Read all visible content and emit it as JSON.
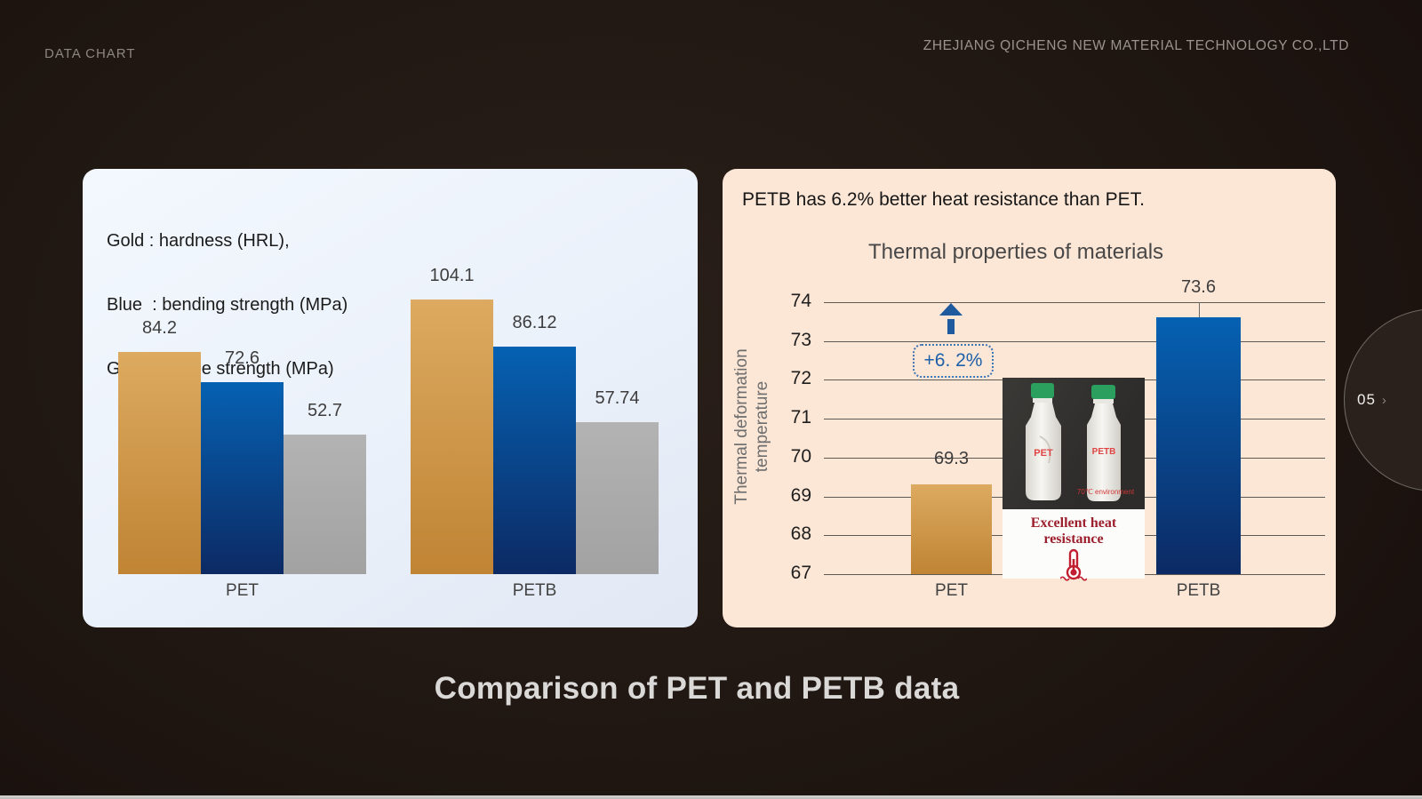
{
  "header": {
    "left_label": "DATA CHART",
    "company": "ZHEJIANG QICHENG NEW MATERIAL TECHNOLOGY  CO.,LTD"
  },
  "footer": {
    "title": "Comparison of PET and PETB data"
  },
  "pager": {
    "page": "05",
    "chevron": "›"
  },
  "left_panel": {
    "legend_lines": [
      "Gold : hardness (HRL),",
      "Blue  : bending strength (MPa)",
      "Gray : tensile strength (MPa)"
    ]
  },
  "right_panel": {
    "headline": "PETB has 6.2% better heat resistance than PET.",
    "chart_title": "Thermal properties of materials",
    "ylabel_line1": "Thermal deformation",
    "ylabel_line2": "temperature",
    "annotation": "+6. 2%",
    "photo": {
      "bottle_left_label": "PET",
      "bottle_right_label": "PETB",
      "note": "70℃ environment",
      "caption": "Excellent heat resistance"
    }
  },
  "colors": {
    "gold_top": "#dcaa60",
    "gold_bottom": "#c08434",
    "blue_top": "#0661b2",
    "blue_bottom": "#0c2a64",
    "gray_top": "#b3b3b3",
    "gray_bottom": "#a2a2a2",
    "annotation_blue": "#1d5fa8",
    "arrow_blue": "#1e5a9d",
    "caption_red": "#9c1f2d",
    "gridline": "#5d5a56"
  },
  "chart_data": [
    {
      "type": "bar",
      "panel": "left",
      "title": "",
      "categories": [
        "PET",
        "PETB"
      ],
      "series": [
        {
          "name": "hardness (HRL)",
          "color": "gold",
          "values": [
            84.2,
            104.1
          ]
        },
        {
          "name": "bending strength (MPa)",
          "color": "blue",
          "values": [
            72.6,
            86.12
          ]
        },
        {
          "name": "tensile strength (MPa)",
          "color": "gray",
          "values": [
            52.7,
            57.74
          ]
        }
      ],
      "ylim": [
        0,
        110
      ],
      "grid": false,
      "value_labels": true,
      "legend_note": "Gold : hardness (HRL), Blue : bending strength (MPa), Gray : tensile strength (MPa)"
    },
    {
      "type": "bar",
      "panel": "right",
      "title": "Thermal properties of materials",
      "categories": [
        "PET",
        "PETB"
      ],
      "series": [
        {
          "name": "Thermal deformation temperature",
          "values": [
            69.3,
            73.6
          ],
          "colors": [
            "gold",
            "blue"
          ]
        }
      ],
      "ylabel": "Thermal deformation temperature",
      "ylim": [
        67,
        74
      ],
      "yticks": [
        67,
        68,
        69,
        70,
        71,
        72,
        73,
        74
      ],
      "grid": true,
      "value_labels": true,
      "annotation": {
        "text": "+6. 2%",
        "delta_percent": 6.2
      }
    }
  ]
}
